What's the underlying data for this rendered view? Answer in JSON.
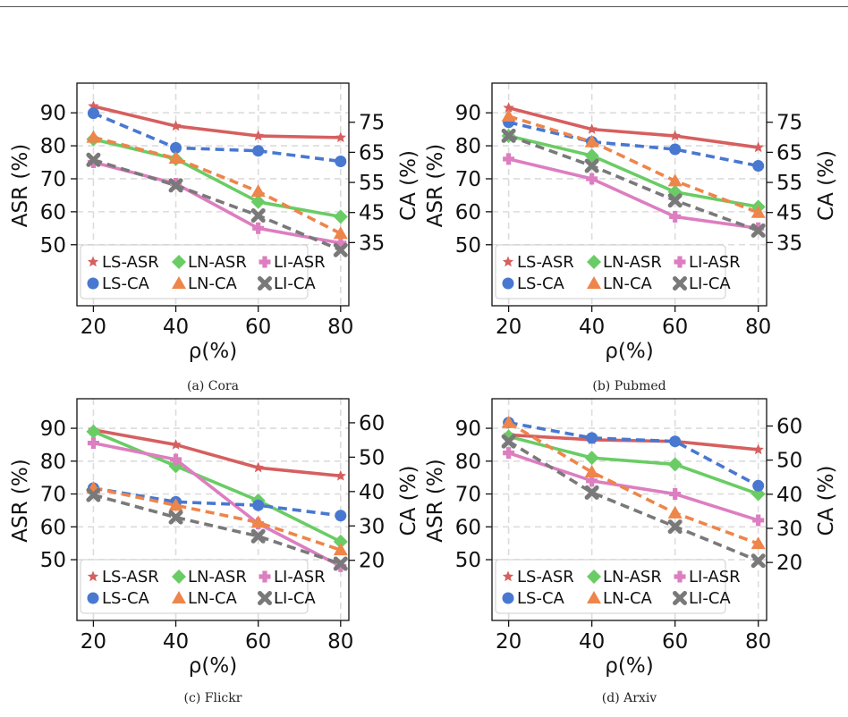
{
  "legend_labels": [
    "LS-ASR",
    "LN-ASR",
    "LI-ASR",
    "LS-CA",
    "LN-CA",
    "LI-CA"
  ],
  "colors": {
    "LS-ASR": "#d65f5f",
    "LN-ASR": "#6acc64",
    "LI-ASR": "#dc7ec0",
    "LS-CA": "#4878d0",
    "LN-CA": "#ee854a",
    "LI-CA": "#797979"
  },
  "chart_data": [
    {
      "type": "line",
      "caption": "(a) Cora",
      "x": [
        20,
        40,
        60,
        80
      ],
      "xlabel": "ρ(%)",
      "ylabel_left": "ASR (%)",
      "ylabel_right": "CA (%)",
      "yticks_left": [
        50,
        60,
        70,
        80,
        90
      ],
      "yticks_right": [
        35,
        45,
        55,
        65,
        75
      ],
      "ylim_left": [
        31.5,
        99
      ],
      "ylim_right": [
        14,
        88
      ],
      "series": [
        {
          "name": "LS-ASR",
          "axis": "left",
          "values": [
            92,
            86,
            83,
            82.5
          ]
        },
        {
          "name": "LN-ASR",
          "axis": "left",
          "values": [
            82,
            76,
            63,
            58.5
          ]
        },
        {
          "name": "LI-ASR",
          "axis": "left",
          "values": [
            75,
            68.5,
            55,
            50.5
          ]
        },
        {
          "name": "LS-CA",
          "axis": "right",
          "values": [
            78,
            66.5,
            65.5,
            62
          ]
        },
        {
          "name": "LN-CA",
          "axis": "right",
          "values": [
            70,
            63,
            52,
            38
          ]
        },
        {
          "name": "LI-CA",
          "axis": "right",
          "values": [
            62.5,
            54,
            44,
            32.5
          ]
        }
      ]
    },
    {
      "type": "line",
      "caption": "(b) Pubmed",
      "x": [
        20,
        40,
        60,
        80
      ],
      "xlabel": "ρ(%)",
      "ylabel_left": "ASR (%)",
      "ylabel_right": "CA (%)",
      "yticks_left": [
        50,
        60,
        70,
        80,
        90
      ],
      "yticks_right": [
        35,
        45,
        55,
        65,
        75
      ],
      "ylim_left": [
        31.5,
        99
      ],
      "ylim_right": [
        14,
        88
      ],
      "series": [
        {
          "name": "LS-ASR",
          "axis": "left",
          "values": [
            91.5,
            85,
            83,
            79.5
          ]
        },
        {
          "name": "LN-ASR",
          "axis": "left",
          "values": [
            83,
            77,
            66,
            61.5
          ]
        },
        {
          "name": "LI-ASR",
          "axis": "left",
          "values": [
            76,
            70,
            58.5,
            55
          ]
        },
        {
          "name": "LS-CA",
          "axis": "right",
          "values": [
            75,
            68.5,
            66,
            60.5
          ]
        },
        {
          "name": "LN-CA",
          "axis": "right",
          "values": [
            77,
            68.5,
            55.5,
            45
          ]
        },
        {
          "name": "LI-CA",
          "axis": "right",
          "values": [
            70.5,
            60.5,
            49,
            39
          ]
        }
      ]
    },
    {
      "type": "line",
      "caption": "(c) Flickr",
      "x": [
        20,
        40,
        60,
        80
      ],
      "xlabel": "ρ(%)",
      "ylabel_left": "ASR (%)",
      "ylabel_right": "CA (%)",
      "yticks_left": [
        50,
        60,
        70,
        80,
        90
      ],
      "yticks_right": [
        20,
        30,
        40,
        50,
        60
      ],
      "ylim_left": [
        31.5,
        99
      ],
      "ylim_right": [
        2.5,
        67
      ],
      "series": [
        {
          "name": "LS-ASR",
          "axis": "left",
          "values": [
            89.5,
            85,
            78,
            75.5
          ]
        },
        {
          "name": "LN-ASR",
          "axis": "left",
          "values": [
            89,
            78.5,
            68,
            55.5
          ]
        },
        {
          "name": "LI-ASR",
          "axis": "left",
          "values": [
            85.5,
            80.5,
            61,
            48
          ]
        },
        {
          "name": "LS-CA",
          "axis": "right",
          "values": [
            41,
            37,
            36,
            33
          ]
        },
        {
          "name": "LN-CA",
          "axis": "right",
          "values": [
            41,
            36,
            31,
            23
          ]
        },
        {
          "name": "LI-CA",
          "axis": "right",
          "values": [
            39,
            32.5,
            27,
            19
          ]
        }
      ]
    },
    {
      "type": "line",
      "caption": "(d) Arxiv",
      "x": [
        20,
        40,
        60,
        80
      ],
      "xlabel": "ρ(%)",
      "ylabel_left": "ASR (%)",
      "ylabel_right": "CA (%)",
      "yticks_left": [
        50,
        60,
        70,
        80,
        90
      ],
      "yticks_right": [
        20,
        30,
        40,
        50,
        60
      ],
      "ylim_left": [
        31.5,
        99
      ],
      "ylim_right": [
        3,
        68
      ],
      "series": [
        {
          "name": "LS-ASR",
          "axis": "left",
          "values": [
            88,
            86.5,
            86,
            83.5
          ]
        },
        {
          "name": "LN-ASR",
          "axis": "left",
          "values": [
            87.5,
            81,
            79,
            70
          ]
        },
        {
          "name": "LI-ASR",
          "axis": "left",
          "values": [
            82.5,
            74,
            70,
            62
          ]
        },
        {
          "name": "LS-CA",
          "axis": "right",
          "values": [
            61,
            56.5,
            55.5,
            42.5
          ]
        },
        {
          "name": "LN-CA",
          "axis": "right",
          "values": [
            61,
            46.5,
            34.5,
            25.5
          ]
        },
        {
          "name": "LI-CA",
          "axis": "right",
          "values": [
            55.5,
            40.5,
            30.5,
            20.5
          ]
        }
      ]
    }
  ]
}
